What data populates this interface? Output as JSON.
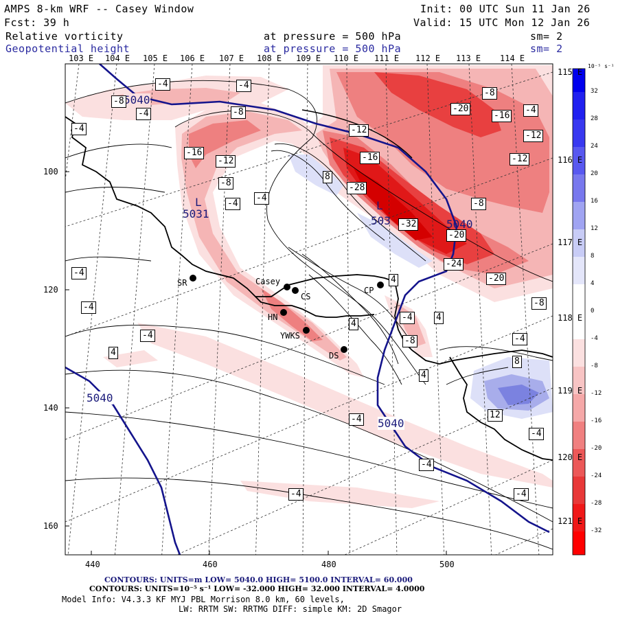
{
  "header": {
    "title": "AMPS 8-km WRF -- Casey Window",
    "init": "Init: 00 UTC Sun 11 Jan 26",
    "fcst": "Fcst:   39 h",
    "valid": "Valid: 15 UTC Mon 12 Jan 26",
    "field1": "Relative vorticity",
    "field1_pressure": "at pressure =  500 hPa",
    "field1_sm": "sm= 2",
    "field2": "Geopotential height",
    "field2_pressure": "at pressure =  500 hPa",
    "field2_sm": "sm= 2"
  },
  "lon_labels": [
    "103 E",
    "104 E",
    "105 E",
    "106 E",
    "107 E",
    "108 E",
    "109 E",
    "110 E",
    "111 E",
    "112 E",
    "113 E",
    "114 E"
  ],
  "lat_labels_right": [
    "115 E",
    "116 E",
    "117 E",
    "118 E",
    "119 E",
    "120 E",
    "121 E"
  ],
  "grid_axis": {
    "x_ticks": [
      "440",
      "460",
      "480",
      "500"
    ],
    "y_ticks": [
      "100",
      "120",
      "140",
      "160"
    ]
  },
  "colorbar": {
    "unit": "10⁻⁵ s⁻¹",
    "ticks": [
      "32",
      "28",
      "24",
      "20",
      "16",
      "12",
      "8",
      "4",
      "0",
      "-4",
      "-8",
      "-12",
      "-16",
      "-20",
      "-24",
      "-28",
      "-32"
    ]
  },
  "stations": [
    {
      "name": "SR"
    },
    {
      "name": "Casey"
    },
    {
      "name": "CS"
    },
    {
      "name": "CP"
    },
    {
      "name": "HN"
    },
    {
      "name": "YWKS"
    },
    {
      "name": "DS"
    }
  ],
  "height_labels": [
    "5040",
    "5040",
    "5040",
    "5040",
    "5031",
    "503"
  ],
  "low_marks": [
    "L",
    "L"
  ],
  "vort_labels": [
    "-4",
    "-8",
    "-4",
    "-4",
    "-8",
    "-16",
    "-12",
    "-8",
    "-4",
    "-4",
    "-4",
    "-12",
    "-16",
    "-28",
    "8",
    "-32",
    "-20",
    "-20",
    "-8",
    "-4",
    "-16",
    "-12",
    "-12",
    "-8",
    "-24",
    "-20",
    "-8",
    "-4",
    "4",
    "4",
    "4",
    "-4",
    "-4",
    "-4",
    "-8",
    "8",
    "-4",
    "12",
    "-4",
    "4",
    "-4",
    "-4",
    "-4",
    "-4",
    "4"
  ],
  "footer": {
    "line1": "CONTOURS:  UNITS=m  LOW=  5040.0          HIGH=  5100.0        INTERVAL=   60.000",
    "line2": "CONTOURS:  UNITS=10⁻⁵ s⁻¹   LOW= -32.000          HIGH=  32.000        INTERVAL=   4.0000",
    "line3": "Model Info: V4.3.3    KF       MYJ PBL   Morrison              8.0 km,  60 levels,",
    "line4": "LW: RRTM SW: RRTMG    DIFF: simple KM: 2D Smagor"
  },
  "colors": {
    "height_contour": "#14148c",
    "neg_strong": "#ff1a1a",
    "pos_strong": "#1a1aff"
  }
}
